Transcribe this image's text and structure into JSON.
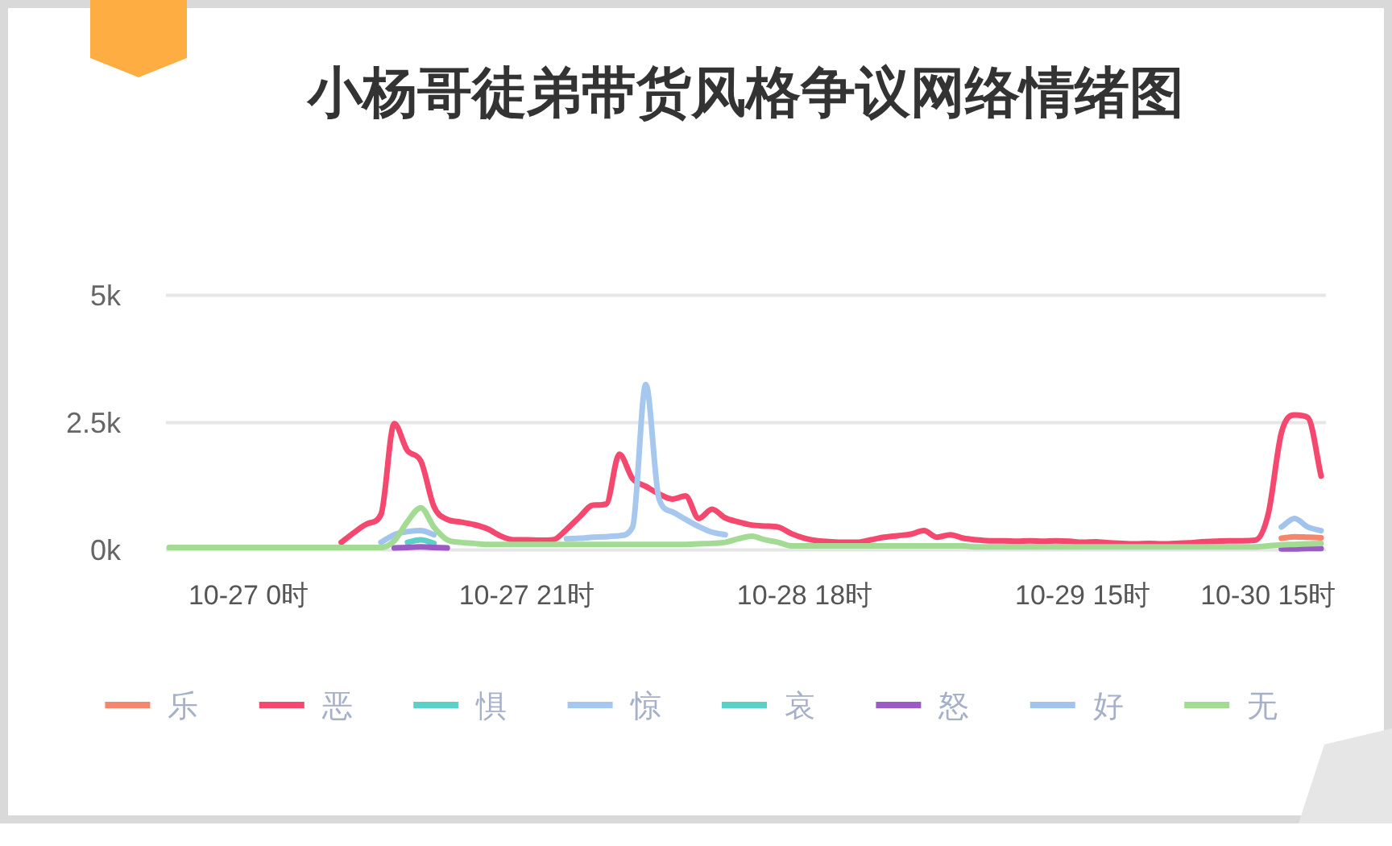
{
  "chart_data": {
    "type": "line",
    "title": "小杨哥徒弟带货风格争议网络情绪图",
    "categories": [
      null,
      null,
      null,
      null,
      null,
      null,
      "10-27 0时",
      null,
      null,
      null,
      null,
      null,
      null,
      null,
      null,
      null,
      null,
      null,
      null,
      null,
      null,
      null,
      null,
      null,
      null,
      null,
      null,
      "10-27 21时",
      null,
      null,
      null,
      null,
      null,
      null,
      null,
      null,
      null,
      null,
      null,
      null,
      null,
      null,
      null,
      null,
      null,
      null,
      null,
      null,
      "10-28 18时",
      null,
      null,
      null,
      null,
      null,
      null,
      null,
      null,
      null,
      null,
      null,
      null,
      null,
      null,
      null,
      null,
      null,
      null,
      null,
      null,
      "10-29 15时",
      null,
      null,
      null,
      null,
      null,
      null,
      null,
      null,
      null,
      null,
      null,
      null,
      null,
      "10-30 15时",
      null,
      null,
      null,
      null
    ],
    "series": [
      {
        "name": "乐",
        "color": "#f4866e",
        "values": [
          null,
          null,
          null,
          null,
          null,
          null,
          null,
          null,
          null,
          null,
          null,
          null,
          null,
          null,
          null,
          null,
          null,
          null,
          null,
          null,
          null,
          null,
          null,
          null,
          null,
          null,
          null,
          null,
          null,
          null,
          null,
          null,
          null,
          null,
          null,
          null,
          null,
          null,
          null,
          null,
          null,
          null,
          null,
          null,
          null,
          null,
          null,
          null,
          null,
          null,
          null,
          null,
          null,
          null,
          null,
          null,
          null,
          null,
          null,
          null,
          null,
          null,
          null,
          null,
          null,
          null,
          null,
          null,
          null,
          null,
          null,
          null,
          null,
          null,
          null,
          null,
          null,
          null,
          null,
          null,
          null,
          null,
          null,
          null,
          230,
          260,
          250,
          240
        ]
      },
      {
        "name": "恶",
        "color": "#f5486f",
        "values": [
          null,
          null,
          null,
          null,
          null,
          null,
          null,
          null,
          null,
          null,
          null,
          null,
          null,
          150,
          350,
          520,
          700,
          2480,
          1950,
          1750,
          850,
          600,
          550,
          500,
          420,
          280,
          200,
          200,
          190,
          200,
          400,
          650,
          880,
          900,
          1880,
          1400,
          1250,
          1100,
          1000,
          1060,
          620,
          800,
          630,
          550,
          490,
          470,
          450,
          320,
          230,
          180,
          160,
          150,
          150,
          200,
          250,
          280,
          310,
          380,
          250,
          300,
          230,
          200,
          180,
          180,
          170,
          180,
          170,
          180,
          170,
          150,
          160,
          140,
          130,
          120,
          130,
          120,
          130,
          140,
          160,
          170,
          180,
          180,
          190,
          700,
          2300,
          2650,
          2600,
          1450
        ]
      },
      {
        "name": "惧",
        "color": "#5ccfc6",
        "values": [
          null,
          null,
          null,
          null,
          null,
          null,
          null,
          null,
          null,
          null,
          null,
          null,
          null,
          null,
          null,
          null,
          null,
          null,
          150,
          200,
          130,
          null,
          null,
          null,
          null,
          null,
          null,
          null,
          null,
          null,
          null,
          null,
          null,
          null,
          null,
          null,
          null,
          null,
          null,
          null,
          null,
          null,
          null,
          null,
          null,
          null,
          null,
          null,
          null,
          null,
          null,
          null,
          null,
          null,
          null,
          null,
          null,
          null,
          null,
          null,
          null,
          null,
          null,
          null,
          null,
          null,
          null,
          null,
          null,
          null,
          null,
          null,
          null,
          null,
          null,
          null,
          null,
          null,
          null,
          null,
          null,
          null,
          null,
          null,
          null,
          null,
          null,
          null
        ]
      },
      {
        "name": "惊",
        "color": "#a6c8ee",
        "values": [
          null,
          null,
          null,
          null,
          null,
          null,
          null,
          null,
          null,
          null,
          null,
          null,
          null,
          null,
          null,
          null,
          null,
          null,
          null,
          null,
          null,
          null,
          null,
          null,
          null,
          null,
          null,
          null,
          null,
          null,
          220,
          230,
          250,
          260,
          280,
          450,
          3250,
          1000,
          750,
          600,
          460,
          350,
          300,
          null,
          null,
          null,
          null,
          null,
          null,
          null,
          null,
          null,
          null,
          null,
          null,
          null,
          null,
          null,
          null,
          null,
          null,
          null,
          null,
          null,
          null,
          null,
          null,
          null,
          null,
          null,
          null,
          null,
          null,
          null,
          null,
          null,
          null,
          null,
          null,
          null,
          null,
          null,
          null,
          null,
          null,
          null,
          null,
          null
        ]
      },
      {
        "name": "哀",
        "color": "#5ccfc6",
        "values": [
          null,
          null,
          null,
          null,
          null,
          null,
          null,
          null,
          null,
          null,
          null,
          null,
          null,
          null,
          null,
          null,
          null,
          null,
          null,
          null,
          null,
          null,
          null,
          null,
          null,
          null,
          null,
          null,
          null,
          null,
          null,
          null,
          null,
          null,
          null,
          null,
          null,
          null,
          null,
          null,
          null,
          null,
          null,
          null,
          null,
          null,
          null,
          null,
          null,
          null,
          null,
          null,
          null,
          null,
          null,
          null,
          null,
          null,
          null,
          null,
          null,
          null,
          null,
          null,
          null,
          null,
          null,
          null,
          null,
          null,
          null,
          null,
          null,
          null,
          null,
          null,
          null,
          null,
          null,
          null,
          null,
          null,
          null,
          null,
          null,
          null,
          null,
          null
        ]
      },
      {
        "name": "怒",
        "color": "#9b5bc4",
        "values": [
          null,
          null,
          null,
          null,
          null,
          null,
          null,
          null,
          null,
          null,
          null,
          null,
          null,
          null,
          null,
          null,
          null,
          40,
          50,
          60,
          50,
          40,
          null,
          null,
          null,
          null,
          null,
          null,
          null,
          null,
          null,
          null,
          null,
          null,
          null,
          null,
          null,
          null,
          null,
          null,
          null,
          null,
          null,
          null,
          null,
          null,
          null,
          null,
          null,
          null,
          null,
          null,
          null,
          null,
          null,
          null,
          null,
          null,
          null,
          null,
          null,
          null,
          null,
          null,
          null,
          null,
          null,
          null,
          null,
          null,
          null,
          null,
          null,
          null,
          null,
          null,
          null,
          null,
          null,
          null,
          null,
          null,
          null,
          null,
          20,
          20,
          30,
          30
        ]
      },
      {
        "name": "好",
        "color": "#a2c4ec",
        "values": [
          null,
          null,
          null,
          null,
          null,
          null,
          null,
          null,
          null,
          null,
          null,
          null,
          null,
          null,
          null,
          null,
          150,
          300,
          360,
          380,
          300,
          null,
          null,
          null,
          null,
          null,
          null,
          null,
          null,
          null,
          null,
          null,
          null,
          null,
          null,
          null,
          null,
          null,
          null,
          null,
          null,
          null,
          null,
          null,
          null,
          null,
          null,
          null,
          null,
          null,
          null,
          null,
          null,
          null,
          null,
          null,
          null,
          null,
          null,
          null,
          null,
          null,
          null,
          null,
          null,
          null,
          null,
          null,
          null,
          null,
          null,
          null,
          null,
          null,
          null,
          null,
          null,
          null,
          null,
          null,
          null,
          null,
          null,
          null,
          450,
          620,
          450,
          380
        ]
      },
      {
        "name": "无",
        "color": "#a3db94",
        "values": [
          50,
          50,
          50,
          50,
          50,
          50,
          50,
          50,
          50,
          50,
          50,
          50,
          50,
          50,
          50,
          50,
          50,
          180,
          560,
          830,
          450,
          200,
          150,
          130,
          110,
          110,
          110,
          110,
          110,
          110,
          110,
          110,
          110,
          110,
          110,
          110,
          110,
          110,
          110,
          110,
          120,
          130,
          150,
          220,
          270,
          200,
          150,
          80,
          80,
          80,
          80,
          80,
          80,
          80,
          80,
          80,
          80,
          80,
          80,
          80,
          80,
          60,
          60,
          60,
          60,
          60,
          60,
          60,
          60,
          60,
          60,
          60,
          60,
          60,
          60,
          60,
          60,
          60,
          60,
          60,
          60,
          60,
          60,
          80,
          100,
          110,
          120,
          130
        ]
      }
    ],
    "ylim": [
      0,
      5000
    ],
    "yticks": [
      {
        "value": 0,
        "label": "0k"
      },
      {
        "value": 2500,
        "label": "2.5k"
      },
      {
        "value": 5000,
        "label": "5k"
      }
    ],
    "grid": "y",
    "legend": "bottom",
    "line_style": "solid"
  }
}
